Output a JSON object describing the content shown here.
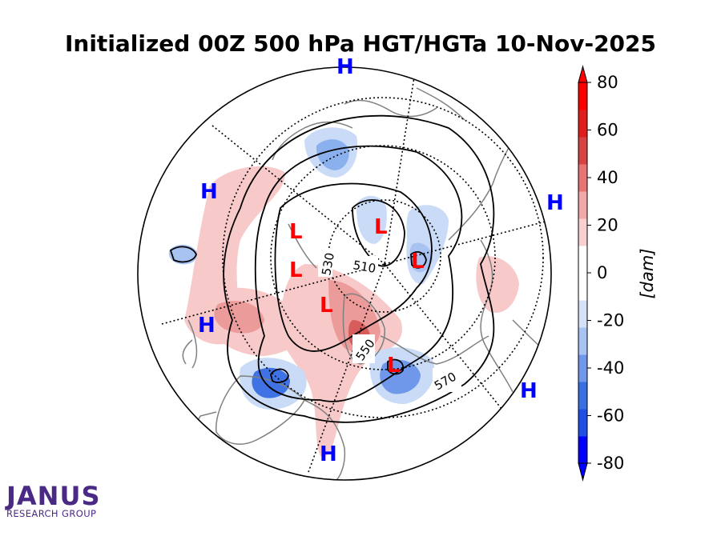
{
  "title": "Initialized 00Z 500 hPa HGT/HGTa 10-Nov-2025",
  "logo": {
    "name": "JANUS",
    "subtitle": "RESEARCH GROUP"
  },
  "colorbar": {
    "label": "[dam]",
    "min": -80,
    "max": 80,
    "ticks": [
      "80",
      "60",
      "40",
      "20",
      "0",
      "-20",
      "-40",
      "-60",
      "-80"
    ],
    "colors": [
      "#0000ff",
      "#1f4fe6",
      "#3a6fe3",
      "#6f97ea",
      "#a8c3f2",
      "#d4e2f8",
      "#ffffff",
      "#ffffff",
      "#f8d0d0",
      "#f2a8a8",
      "#e87474",
      "#d94242",
      "#e01c1c",
      "#ff0000"
    ]
  },
  "pressure_systems": [
    {
      "type": "H",
      "color": "#0000ff"
    },
    {
      "type": "H",
      "color": "#0000ff"
    },
    {
      "type": "H",
      "color": "#0000ff"
    },
    {
      "type": "H",
      "color": "#0000ff"
    },
    {
      "type": "H",
      "color": "#0000ff"
    },
    {
      "type": "H",
      "color": "#0000ff"
    },
    {
      "type": "L",
      "color": "#ff0000"
    },
    {
      "type": "L",
      "color": "#ff0000"
    },
    {
      "type": "L",
      "color": "#ff0000"
    },
    {
      "type": "L",
      "color": "#ff0000"
    },
    {
      "type": "L",
      "color": "#ff0000"
    },
    {
      "type": "L",
      "color": "#ff0000"
    }
  ],
  "contour_labels": [
    "510",
    "530",
    "550",
    "570"
  ]
}
